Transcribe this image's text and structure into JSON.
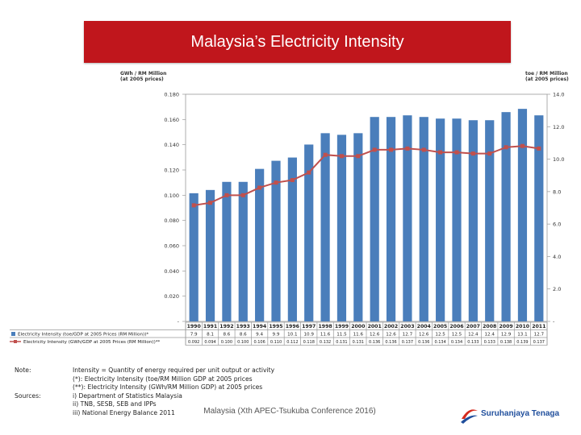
{
  "title": "Malaysia’s Electricity Intensity",
  "left_axis_title": [
    "GWh / RM Million",
    "(at 2005 prices)"
  ],
  "right_axis_title": [
    "toe / RM Million",
    "(at 2005 prices)"
  ],
  "chart_data": {
    "type": "bar+line",
    "categories": [
      "1990",
      "1991",
      "1992",
      "1993",
      "1994",
      "1995",
      "1996",
      "1997",
      "1998",
      "1999",
      "2000",
      "2001",
      "2002",
      "2003",
      "2004",
      "2005",
      "2006",
      "2007",
      "2008",
      "2009",
      "2010",
      "2011"
    ],
    "left_ticks": [
      "0.180",
      "0.160",
      "0.140",
      "0.120",
      "0.100",
      "0.080",
      "0.060",
      "0.040",
      "0.020",
      "-"
    ],
    "right_ticks": [
      "14.0",
      "12.0",
      "10.0",
      "8.0",
      "6.0",
      "4.0",
      "2.0",
      "-"
    ],
    "left_ylim": [
      0,
      0.18
    ],
    "right_ylim": [
      0,
      14
    ],
    "series": [
      {
        "name": "Electricity Intensity (toe/GDP at 2005 Prices (RM Million))*",
        "axis": "right",
        "color": "#4a7ebb",
        "values": [
          7.9,
          8.1,
          8.6,
          8.6,
          9.4,
          9.9,
          10.1,
          10.9,
          11.6,
          11.5,
          11.6,
          12.6,
          12.6,
          12.7,
          12.6,
          12.5,
          12.5,
          12.4,
          12.4,
          12.9,
          13.1,
          12.7
        ],
        "labels": [
          "7.9",
          "8.1",
          "8.6",
          "8.6",
          "9.4",
          "9.9",
          "10.1",
          "10.9",
          "11.6",
          "11.5",
          "11.6",
          "12.6",
          "12.6",
          "12.7",
          "12.6",
          "12.5",
          "12.5",
          "12.4",
          "12.4",
          "12.9",
          "13.1",
          "12.7"
        ]
      },
      {
        "name": "Electricity Intensity (GWh/GDP at 2005 Prices (RM Million))**",
        "axis": "left",
        "color": "#c0504d",
        "values": [
          0.092,
          0.094,
          0.1,
          0.1,
          0.106,
          0.11,
          0.112,
          0.118,
          0.132,
          0.131,
          0.131,
          0.136,
          0.136,
          0.137,
          0.136,
          0.134,
          0.134,
          0.133,
          0.133,
          0.138,
          0.139,
          0.137
        ],
        "labels": [
          "0.092",
          "0.094",
          "0.100",
          "0.100",
          "0.106",
          "0.110",
          "0.112",
          "0.118",
          "0.132",
          "0.131",
          "0.131",
          "0.136",
          "0.136",
          "0.137",
          "0.136",
          "0.134",
          "0.134",
          "0.133",
          "0.133",
          "0.138",
          "0.139",
          "0.137"
        ]
      }
    ]
  },
  "footer": {
    "note_label": "Note:",
    "sources_label": "Sources:",
    "note_lines": [
      "Intensity = Quantity of energy required per unit output or activity",
      "(*): Electricity Intensity (toe/RM Million GDP at 2005 prices",
      "(**): Electricity Intensity (GWh/RM Million GDP) at 2005 prices",
      "i) Department of Statistics Malaysia",
      "ii) TNB, SESB, SEB and IPPs",
      "iii) National Energy Balance 2011"
    ],
    "conference": "Malaysia (Xth APEC-Tsukuba Conference 2016)",
    "logo_text": "Suruhanjaya Tenaga"
  }
}
